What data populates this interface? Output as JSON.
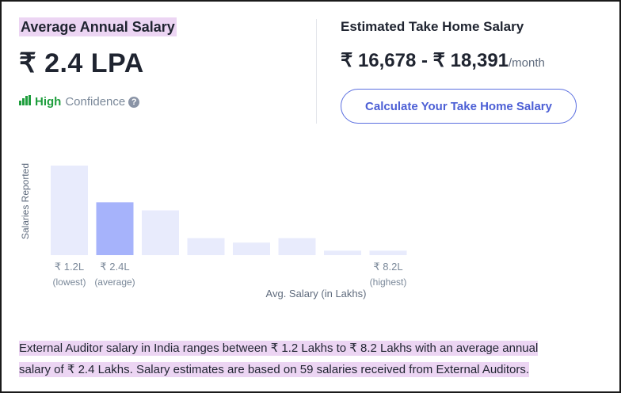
{
  "summary": {
    "title": "Average Annual Salary",
    "value": "₹ 2.4 LPA",
    "confidence_level": "High",
    "confidence_label": "Confidence",
    "help_icon": "question-icon"
  },
  "take_home": {
    "title": "Estimated Take Home Salary",
    "range": "₹ 16,678 - ₹ 18,391",
    "unit": "/month",
    "button_label": "Calculate Your Take Home Salary"
  },
  "chart_data": {
    "type": "bar",
    "ylabel": "Salaries Reported",
    "xlabel": "Avg. Salary (in Lakhs)",
    "values": [
      100,
      59,
      50,
      19,
      14,
      19,
      5,
      5
    ],
    "highlight_index": 1,
    "bar_color": "#e8ebfc",
    "highlight_color": "#a6b3fb",
    "tick_labels": [
      {
        "index": 0,
        "value": "₹ 1.2L",
        "sub": "(lowest)"
      },
      {
        "index": 1,
        "value": "₹ 2.4L",
        "sub": "(average)"
      },
      {
        "index": 7,
        "value": "₹ 8.2L",
        "sub": "(highest)"
      }
    ]
  },
  "description": {
    "line1": "External Auditor salary in India ranges between ₹ 1.2 Lakhs to ₹ 8.2 Lakhs with an average annual",
    "line2": "salary of ₹ 2.4 Lakhs. Salary estimates are based on 59 salaries received from External Auditors."
  },
  "colors": {
    "highlight_bg": "#ecd5f3",
    "confidence_green": "#1e9e3d",
    "button_blue": "#4c5fd5"
  }
}
